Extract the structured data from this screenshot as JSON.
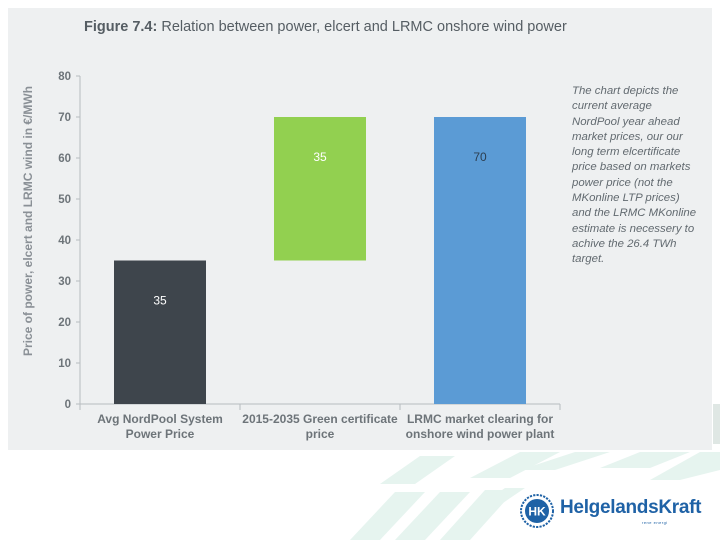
{
  "figure": {
    "number": "Figure 7.4:",
    "title": "Relation between power, elcert and LRMC onshore wind power"
  },
  "note": "The chart depicts the current average NordPool year ahead market prices, our our long term elcertificate price based on markets power price (not the MKonline LTP prices) and the LRMC MKonline estimate is necessery to achive the 26.4 TWh target.",
  "logo": {
    "name": "HelgelandsKraft",
    "mark": "HK",
    "tagline": "rene energi"
  },
  "colors": {
    "dark": "#3e454c",
    "green": "#92d050",
    "blue": "#5b9bd5",
    "axis": "#b7bcc0",
    "tick": "#6d7479",
    "panel": "#eef0f1",
    "deco": "#e6f4ef"
  },
  "chart_data": {
    "type": "bar",
    "subtype": "waterfall",
    "ylabel": "Price of power, elcert and LRMC wind in €/MWh",
    "xlabel": "",
    "ylim": [
      0,
      80
    ],
    "yticks": [
      0,
      10,
      20,
      30,
      40,
      50,
      60,
      70,
      80
    ],
    "grid": false,
    "legend": "none",
    "bars": [
      {
        "category": "Avg NordPool System Power Price",
        "base": 0,
        "value": 35,
        "label": "35",
        "color": "#3e454c"
      },
      {
        "category": "2015-2035 Green certificate price",
        "base": 35,
        "value": 35,
        "label": "35",
        "color": "#92d050"
      },
      {
        "category": "LRMC market clearing for onshore wind power plant",
        "base": 0,
        "value": 70,
        "label": "70",
        "color": "#5b9bd5"
      }
    ],
    "category_lines": [
      [
        "Avg NordPool System",
        "Power Price"
      ],
      [
        "2015-2035 Green certificate",
        "price"
      ],
      [
        "LRMC market clearing for",
        "onshore wind power plant"
      ]
    ]
  }
}
